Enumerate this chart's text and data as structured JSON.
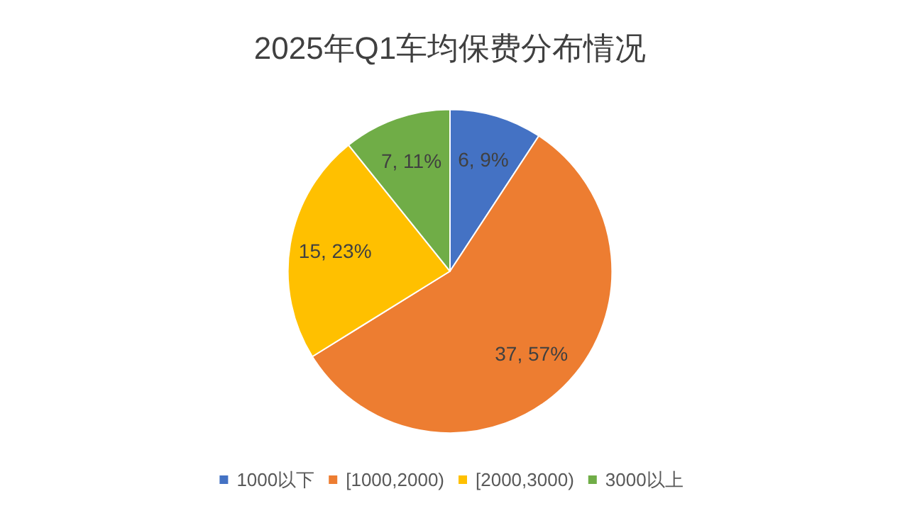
{
  "chart_data": {
    "type": "pie",
    "title": "2025年Q1车均保费分布情况",
    "categories": [
      "1000以下",
      "[1000,2000)",
      "[2000,3000)",
      "3000以上"
    ],
    "values": [
      6,
      37,
      15,
      7
    ],
    "value_labels": [
      "6, 9%",
      "37, 57%",
      "15, 23%",
      "7, 11%"
    ],
    "colors": [
      "#4472c4",
      "#ed7d31",
      "#ffc000",
      "#70ad47"
    ],
    "legend": "bottom"
  }
}
